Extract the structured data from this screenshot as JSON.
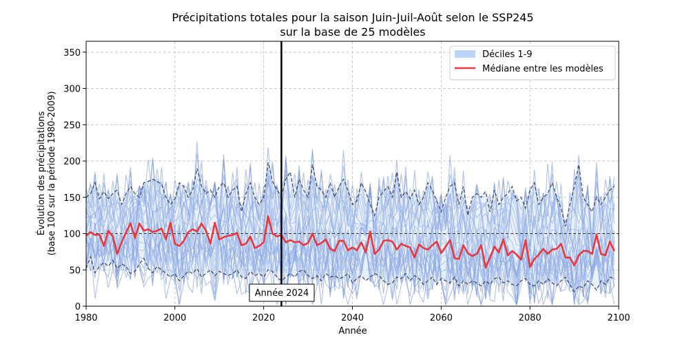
{
  "chart_data": {
    "type": "line",
    "title": "Précipitations totales pour la saison Juin-Juil-Août selon le SSP245",
    "subtitle": "sur la base de 25 modèles",
    "xlabel": "Année",
    "ylabel": "Évolution des précipitations",
    "ylabel2": "(base 100 sur la période 1980-2009)",
    "xlim": [
      1980,
      2100
    ],
    "ylim": [
      0,
      365
    ],
    "xticks": [
      1980,
      2000,
      2020,
      2040,
      2060,
      2080,
      2100
    ],
    "yticks": [
      0,
      50,
      100,
      150,
      200,
      250,
      300,
      350
    ],
    "grid": true,
    "legend_position": "top-right",
    "legend": [
      "Déciles 1-9",
      "Médiane entre les modèles"
    ],
    "reference_line": 100,
    "marker_year": 2024,
    "marker_label": "Année 2024",
    "model_count": 25,
    "colors": {
      "models": "#6f8fd8",
      "band": "#bcd4f7",
      "median": "#e8383d",
      "deciles": "#2a3550"
    },
    "median": [
      [
        1980,
        97
      ],
      [
        1981,
        102
      ],
      [
        1982,
        98
      ],
      [
        1983,
        99
      ],
      [
        1984,
        83
      ],
      [
        1985,
        104
      ],
      [
        1986,
        96
      ],
      [
        1987,
        72
      ],
      [
        1988,
        88
      ],
      [
        1989,
        102
      ],
      [
        1990,
        114
      ],
      [
        1991,
        94
      ],
      [
        1992,
        114
      ],
      [
        1993,
        104
      ],
      [
        1994,
        106
      ],
      [
        1995,
        102
      ],
      [
        1996,
        104
      ],
      [
        1997,
        107
      ],
      [
        1998,
        92
      ],
      [
        1999,
        115
      ],
      [
        2000,
        86
      ],
      [
        2001,
        83
      ],
      [
        2002,
        90
      ],
      [
        2003,
        102
      ],
      [
        2004,
        106
      ],
      [
        2005,
        103
      ],
      [
        2006,
        114
      ],
      [
        2007,
        104
      ],
      [
        2008,
        86
      ],
      [
        2009,
        115
      ],
      [
        2010,
        92
      ],
      [
        2011,
        95
      ],
      [
        2012,
        97
      ],
      [
        2013,
        98
      ],
      [
        2014,
        101
      ],
      [
        2015,
        84
      ],
      [
        2016,
        86
      ],
      [
        2017,
        96
      ],
      [
        2018,
        80
      ],
      [
        2019,
        83
      ],
      [
        2020,
        88
      ],
      [
        2021,
        124
      ],
      [
        2022,
        100
      ],
      [
        2023,
        96
      ],
      [
        2024,
        98
      ],
      [
        2025,
        88
      ],
      [
        2026,
        91
      ],
      [
        2027,
        88
      ],
      [
        2028,
        89
      ],
      [
        2029,
        84
      ],
      [
        2030,
        87
      ],
      [
        2031,
        100
      ],
      [
        2032,
        84
      ],
      [
        2033,
        87
      ],
      [
        2034,
        92
      ],
      [
        2035,
        79
      ],
      [
        2036,
        76
      ],
      [
        2037,
        90
      ],
      [
        2038,
        90
      ],
      [
        2039,
        77
      ],
      [
        2040,
        81
      ],
      [
        2041,
        77
      ],
      [
        2042,
        88
      ],
      [
        2043,
        74
      ],
      [
        2044,
        103
      ],
      [
        2045,
        72
      ],
      [
        2046,
        78
      ],
      [
        2047,
        90
      ],
      [
        2048,
        91
      ],
      [
        2049,
        89
      ],
      [
        2050,
        78
      ],
      [
        2051,
        86
      ],
      [
        2052,
        83
      ],
      [
        2053,
        81
      ],
      [
        2054,
        67
      ],
      [
        2055,
        85
      ],
      [
        2056,
        80
      ],
      [
        2057,
        78
      ],
      [
        2058,
        84
      ],
      [
        2059,
        89
      ],
      [
        2060,
        73
      ],
      [
        2061,
        82
      ],
      [
        2062,
        91
      ],
      [
        2063,
        66
      ],
      [
        2064,
        65
      ],
      [
        2065,
        84
      ],
      [
        2066,
        73
      ],
      [
        2067,
        69
      ],
      [
        2068,
        72
      ],
      [
        2069,
        84
      ],
      [
        2070,
        53
      ],
      [
        2071,
        67
      ],
      [
        2072,
        82
      ],
      [
        2073,
        74
      ],
      [
        2074,
        92
      ],
      [
        2075,
        70
      ],
      [
        2076,
        76
      ],
      [
        2077,
        71
      ],
      [
        2078,
        64
      ],
      [
        2079,
        91
      ],
      [
        2080,
        54
      ],
      [
        2081,
        65
      ],
      [
        2082,
        71
      ],
      [
        2083,
        79
      ],
      [
        2084,
        72
      ],
      [
        2085,
        78
      ],
      [
        2086,
        79
      ],
      [
        2087,
        86
      ],
      [
        2088,
        67
      ],
      [
        2089,
        67
      ],
      [
        2090,
        56
      ],
      [
        2091,
        70
      ],
      [
        2092,
        76
      ],
      [
        2093,
        76
      ],
      [
        2094,
        72
      ],
      [
        2095,
        99
      ],
      [
        2096,
        72
      ],
      [
        2097,
        70
      ],
      [
        2098,
        89
      ],
      [
        2099,
        76
      ]
    ],
    "decile_9": [
      [
        1980,
        150
      ],
      [
        1981,
        155
      ],
      [
        1982,
        170
      ],
      [
        1983,
        148
      ],
      [
        1984,
        158
      ],
      [
        1985,
        148
      ],
      [
        1986,
        155
      ],
      [
        1987,
        160
      ],
      [
        1988,
        140
      ],
      [
        1989,
        155
      ],
      [
        1990,
        165
      ],
      [
        1991,
        155
      ],
      [
        1992,
        150
      ],
      [
        1993,
        170
      ],
      [
        1994,
        172
      ],
      [
        1995,
        175
      ],
      [
        1996,
        172
      ],
      [
        1997,
        168
      ],
      [
        1998,
        150
      ],
      [
        1999,
        140
      ],
      [
        2000,
        148
      ],
      [
        2001,
        170
      ],
      [
        2002,
        165
      ],
      [
        2003,
        150
      ],
      [
        2004,
        160
      ],
      [
        2005,
        190
      ],
      [
        2006,
        165
      ],
      [
        2007,
        155
      ],
      [
        2008,
        160
      ],
      [
        2009,
        150
      ],
      [
        2010,
        165
      ],
      [
        2011,
        170
      ],
      [
        2012,
        150
      ],
      [
        2013,
        160
      ],
      [
        2014,
        165
      ],
      [
        2015,
        130
      ],
      [
        2016,
        155
      ],
      [
        2017,
        170
      ],
      [
        2018,
        150
      ],
      [
        2019,
        140
      ],
      [
        2020,
        150
      ],
      [
        2021,
        198
      ],
      [
        2022,
        172
      ],
      [
        2023,
        160
      ],
      [
        2024,
        152
      ],
      [
        2025,
        175
      ],
      [
        2026,
        185
      ],
      [
        2027,
        150
      ],
      [
        2028,
        175
      ],
      [
        2029,
        160
      ],
      [
        2030,
        150
      ],
      [
        2031,
        195
      ],
      [
        2032,
        165
      ],
      [
        2033,
        160
      ],
      [
        2034,
        150
      ],
      [
        2035,
        170
      ],
      [
        2036,
        150
      ],
      [
        2037,
        165
      ],
      [
        2038,
        175
      ],
      [
        2039,
        160
      ],
      [
        2040,
        140
      ],
      [
        2041,
        145
      ],
      [
        2042,
        170
      ],
      [
        2043,
        158
      ],
      [
        2044,
        140
      ],
      [
        2045,
        125
      ],
      [
        2046,
        150
      ],
      [
        2047,
        158
      ],
      [
        2048,
        165
      ],
      [
        2049,
        150
      ],
      [
        2050,
        185
      ],
      [
        2051,
        150
      ],
      [
        2052,
        158
      ],
      [
        2053,
        148
      ],
      [
        2054,
        160
      ],
      [
        2055,
        140
      ],
      [
        2056,
        150
      ],
      [
        2057,
        170
      ],
      [
        2058,
        160
      ],
      [
        2059,
        145
      ],
      [
        2060,
        130
      ],
      [
        2061,
        150
      ],
      [
        2062,
        165
      ],
      [
        2063,
        170
      ],
      [
        2064,
        140
      ],
      [
        2065,
        165
      ],
      [
        2066,
        125
      ],
      [
        2067,
        150
      ],
      [
        2068,
        155
      ],
      [
        2069,
        150
      ],
      [
        2070,
        158
      ],
      [
        2071,
        130
      ],
      [
        2072,
        160
      ],
      [
        2073,
        140
      ],
      [
        2074,
        150
      ],
      [
        2075,
        155
      ],
      [
        2076,
        165
      ],
      [
        2077,
        145
      ],
      [
        2078,
        150
      ],
      [
        2079,
        135
      ],
      [
        2080,
        160
      ],
      [
        2081,
        170
      ],
      [
        2082,
        140
      ],
      [
        2083,
        150
      ],
      [
        2084,
        155
      ],
      [
        2085,
        170
      ],
      [
        2086,
        150
      ],
      [
        2087,
        135
      ],
      [
        2088,
        110
      ],
      [
        2089,
        140
      ],
      [
        2090,
        165
      ],
      [
        2091,
        195
      ],
      [
        2092,
        150
      ],
      [
        2093,
        140
      ],
      [
        2094,
        130
      ],
      [
        2095,
        150
      ],
      [
        2096,
        140
      ],
      [
        2097,
        150
      ],
      [
        2098,
        160
      ],
      [
        2099,
        165
      ]
    ],
    "decile_1": [
      [
        1980,
        52
      ],
      [
        1981,
        68
      ],
      [
        1982,
        46
      ],
      [
        1983,
        55
      ],
      [
        1984,
        60
      ],
      [
        1985,
        55
      ],
      [
        1986,
        63
      ],
      [
        1987,
        52
      ],
      [
        1988,
        58
      ],
      [
        1989,
        55
      ],
      [
        1990,
        45
      ],
      [
        1991,
        48
      ],
      [
        1992,
        58
      ],
      [
        1993,
        66
      ],
      [
        1994,
        52
      ],
      [
        1995,
        46
      ],
      [
        1996,
        55
      ],
      [
        1997,
        50
      ],
      [
        1998,
        45
      ],
      [
        1999,
        40
      ],
      [
        2000,
        45
      ],
      [
        2001,
        35
      ],
      [
        2002,
        42
      ],
      [
        2003,
        48
      ],
      [
        2004,
        45
      ],
      [
        2005,
        52
      ],
      [
        2006,
        40
      ],
      [
        2007,
        45
      ],
      [
        2008,
        50
      ],
      [
        2009,
        42
      ],
      [
        2010,
        48
      ],
      [
        2011,
        45
      ],
      [
        2012,
        42
      ],
      [
        2013,
        45
      ],
      [
        2014,
        50
      ],
      [
        2015,
        40
      ],
      [
        2016,
        38
      ],
      [
        2017,
        48
      ],
      [
        2018,
        42
      ],
      [
        2019,
        45
      ],
      [
        2020,
        40
      ],
      [
        2021,
        50
      ],
      [
        2022,
        48
      ],
      [
        2023,
        40
      ],
      [
        2024,
        35
      ],
      [
        2025,
        40
      ],
      [
        2026,
        45
      ],
      [
        2027,
        40
      ],
      [
        2028,
        48
      ],
      [
        2029,
        50
      ],
      [
        2030,
        42
      ],
      [
        2031,
        38
      ],
      [
        2032,
        42
      ],
      [
        2033,
        35
      ],
      [
        2034,
        45
      ],
      [
        2035,
        40
      ],
      [
        2036,
        42
      ],
      [
        2037,
        38
      ],
      [
        2038,
        40
      ],
      [
        2039,
        45
      ],
      [
        2040,
        32
      ],
      [
        2041,
        38
      ],
      [
        2042,
        42
      ],
      [
        2043,
        35
      ],
      [
        2044,
        40
      ],
      [
        2045,
        45
      ],
      [
        2046,
        42
      ],
      [
        2047,
        35
      ],
      [
        2048,
        30
      ],
      [
        2049,
        32
      ],
      [
        2050,
        40
      ],
      [
        2051,
        38
      ],
      [
        2052,
        45
      ],
      [
        2053,
        35
      ],
      [
        2054,
        42
      ],
      [
        2055,
        38
      ],
      [
        2056,
        30
      ],
      [
        2057,
        35
      ],
      [
        2058,
        40
      ],
      [
        2059,
        30
      ],
      [
        2060,
        38
      ],
      [
        2061,
        35
      ],
      [
        2062,
        32
      ],
      [
        2063,
        40
      ],
      [
        2064,
        28
      ],
      [
        2065,
        35
      ],
      [
        2066,
        30
      ],
      [
        2067,
        35
      ],
      [
        2068,
        32
      ],
      [
        2069,
        28
      ],
      [
        2070,
        35
      ],
      [
        2071,
        30
      ],
      [
        2072,
        38
      ],
      [
        2073,
        40
      ],
      [
        2074,
        32
      ],
      [
        2075,
        35
      ],
      [
        2076,
        30
      ],
      [
        2077,
        28
      ],
      [
        2078,
        35
      ],
      [
        2079,
        38
      ],
      [
        2080,
        30
      ],
      [
        2081,
        28
      ],
      [
        2082,
        35
      ],
      [
        2083,
        30
      ],
      [
        2084,
        38
      ],
      [
        2085,
        32
      ],
      [
        2086,
        28
      ],
      [
        2087,
        35
      ],
      [
        2088,
        40
      ],
      [
        2089,
        30
      ],
      [
        2090,
        20
      ],
      [
        2091,
        28
      ],
      [
        2092,
        25
      ],
      [
        2093,
        35
      ],
      [
        2094,
        30
      ],
      [
        2095,
        22
      ],
      [
        2096,
        35
      ],
      [
        2097,
        30
      ],
      [
        2098,
        40
      ],
      [
        2099,
        38
      ]
    ]
  }
}
